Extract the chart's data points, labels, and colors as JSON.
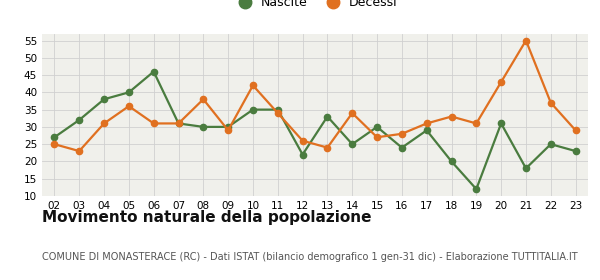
{
  "years": [
    "02",
    "03",
    "04",
    "05",
    "06",
    "07",
    "08",
    "09",
    "10",
    "11",
    "12",
    "13",
    "14",
    "15",
    "16",
    "17",
    "18",
    "19",
    "20",
    "21",
    "22",
    "23"
  ],
  "nascite": [
    27,
    32,
    38,
    40,
    46,
    31,
    30,
    30,
    35,
    35,
    22,
    33,
    25,
    30,
    24,
    29,
    20,
    12,
    31,
    18,
    25,
    23
  ],
  "decessi": [
    25,
    23,
    31,
    36,
    31,
    31,
    38,
    29,
    42,
    34,
    26,
    24,
    34,
    27,
    28,
    31,
    33,
    31,
    43,
    55,
    37,
    29
  ],
  "nascite_color": "#4a7c3f",
  "decessi_color": "#e07020",
  "plot_bg_color": "#f0f0eb",
  "fig_bg_color": "#ffffff",
  "grid_color": "#d0d0d0",
  "ylim": [
    10,
    57
  ],
  "yticks": [
    10,
    15,
    20,
    25,
    30,
    35,
    40,
    45,
    50,
    55
  ],
  "title": "Movimento naturale della popolazione",
  "subtitle": "COMUNE DI MONASTERACE (RC) - Dati ISTAT (bilancio demografico 1 gen-31 dic) - Elaborazione TUTTITALIA.IT",
  "legend_nascite": "Nascite",
  "legend_decessi": "Decessi",
  "title_fontsize": 11,
  "subtitle_fontsize": 7.0,
  "tick_fontsize": 7.5,
  "legend_fontsize": 9,
  "marker_size": 4.5,
  "line_width": 1.6
}
